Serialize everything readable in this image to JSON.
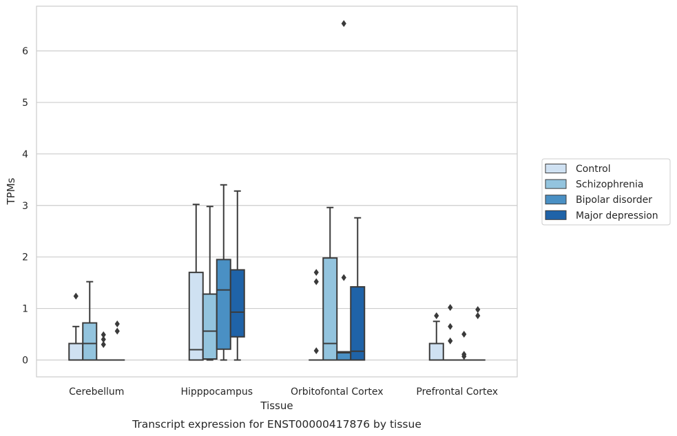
{
  "chart_data": {
    "type": "box",
    "title": "",
    "caption": "Transcript expression for ENST00000417876 by tissue",
    "xlabel": "Tissue",
    "ylabel": "TPMs",
    "ylim": [
      -0.32,
      6.88
    ],
    "yticks": [
      "0",
      "1",
      "2",
      "3",
      "4",
      "5",
      "6"
    ],
    "grid": "horizontal",
    "legend_position": "right",
    "categories": [
      "Cerebellum",
      "Hipppocampus",
      "Orbitofontal Cortex",
      "Prefrontal Cortex"
    ],
    "series": [
      {
        "name": "Control",
        "color": "#cfe1f2",
        "boxes": [
          {
            "q1": 0,
            "median": 0,
            "q3": 0.32,
            "whisker_low": 0,
            "whisker_high": 0.65,
            "outliers": [
              1.24
            ]
          },
          {
            "q1": 0,
            "median": 0.2,
            "q3": 1.7,
            "whisker_low": 0,
            "whisker_high": 3.02,
            "outliers": []
          },
          {
            "q1": 0,
            "median": 0,
            "q3": 0,
            "whisker_low": 0,
            "whisker_high": 0,
            "outliers": [
              1.7,
              1.52,
              0.18
            ]
          },
          {
            "q1": 0,
            "median": 0,
            "q3": 0.32,
            "whisker_low": 0,
            "whisker_high": 0.75,
            "outliers": [
              0.86
            ]
          }
        ]
      },
      {
        "name": "Schizophrenia",
        "color": "#93c4de",
        "boxes": [
          {
            "q1": 0,
            "median": 0.32,
            "q3": 0.72,
            "whisker_low": 0,
            "whisker_high": 1.52,
            "outliers": []
          },
          {
            "q1": 0.02,
            "median": 0.56,
            "q3": 1.28,
            "whisker_low": 0,
            "whisker_high": 2.98,
            "outliers": []
          },
          {
            "q1": 0,
            "median": 0.32,
            "q3": 1.98,
            "whisker_low": 0,
            "whisker_high": 2.96,
            "outliers": []
          },
          {
            "q1": 0,
            "median": 0,
            "q3": 0,
            "whisker_low": 0,
            "whisker_high": 0,
            "outliers": [
              1.02,
              0.65,
              0.37
            ]
          }
        ]
      },
      {
        "name": "Bipolar disorder",
        "color": "#4a90c4",
        "boxes": [
          {
            "q1": 0,
            "median": 0,
            "q3": 0,
            "whisker_low": 0,
            "whisker_high": 0,
            "outliers": [
              0.49,
              0.4,
              0.3
            ]
          },
          {
            "q1": 0.21,
            "median": 1.36,
            "q3": 1.95,
            "whisker_low": 0,
            "whisker_high": 3.4,
            "outliers": []
          },
          {
            "q1": 0,
            "median": 0.14,
            "q3": 0.16,
            "whisker_low": 0,
            "whisker_high": 0.16,
            "outliers": [
              6.53,
              1.6
            ]
          },
          {
            "q1": 0,
            "median": 0,
            "q3": 0,
            "whisker_low": 0,
            "whisker_high": 0,
            "outliers": [
              0.5,
              0.11,
              0.07
            ]
          }
        ]
      },
      {
        "name": "Major depression",
        "color": "#1f63a8",
        "boxes": [
          {
            "q1": 0,
            "median": 0,
            "q3": 0,
            "whisker_low": 0,
            "whisker_high": 0,
            "outliers": [
              0.7,
              0.56
            ]
          },
          {
            "q1": 0.45,
            "median": 0.93,
            "q3": 1.75,
            "whisker_low": 0,
            "whisker_high": 3.28,
            "outliers": []
          },
          {
            "q1": 0,
            "median": 0.17,
            "q3": 1.42,
            "whisker_low": 0,
            "whisker_high": 2.76,
            "outliers": []
          },
          {
            "q1": 0,
            "median": 0,
            "q3": 0,
            "whisker_low": 0,
            "whisker_high": 0,
            "outliers": [
              0.98,
              0.86
            ]
          }
        ]
      }
    ]
  }
}
